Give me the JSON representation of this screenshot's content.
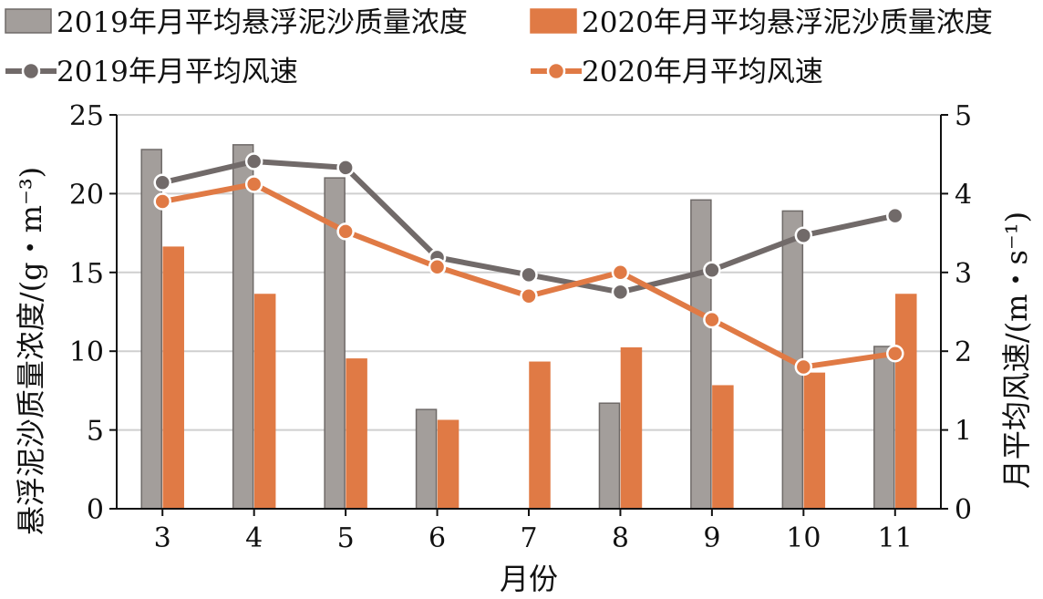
{
  "chart_data": {
    "type": "bar",
    "categories": [
      "3",
      "4",
      "5",
      "6",
      "7",
      "8",
      "9",
      "10",
      "11"
    ],
    "xlabel": "月份",
    "ylabel_left": "悬浮泥沙质量浓度/(g・m⁻³)",
    "ylabel_right": "月平均风速/(m・s⁻¹)",
    "ylim_left": [
      0,
      25
    ],
    "yticks_left": [
      0,
      5,
      10,
      15,
      20,
      25
    ],
    "ylim_right": [
      0,
      5
    ],
    "yticks_right": [
      0,
      1,
      2,
      3,
      4,
      5
    ],
    "grid": "horizontal",
    "legend_position": "top",
    "bar_series": [
      {
        "name": "2019年月平均悬浮泥沙质量浓度",
        "color": "#a39e9b",
        "edge": "#6f6a68",
        "values": [
          22.8,
          23.1,
          21.0,
          6.3,
          null,
          6.7,
          19.6,
          18.9,
          10.3
        ]
      },
      {
        "name": "2020年月平均悬浮泥沙质量浓度",
        "color": "#e07a45",
        "edge": "#e07a45",
        "values": [
          16.6,
          13.6,
          9.5,
          5.6,
          9.3,
          10.2,
          7.8,
          8.6,
          13.6
        ]
      }
    ],
    "line_series": [
      {
        "name": "2019年月平均风速",
        "color": "#716a69",
        "values": [
          4.14,
          4.41,
          4.33,
          3.19,
          2.97,
          2.75,
          3.03,
          3.47,
          3.72
        ]
      },
      {
        "name": "2020年月平均风速",
        "color": "#e07a45",
        "values": [
          3.9,
          4.12,
          3.52,
          3.07,
          2.7,
          3.0,
          2.4,
          1.8,
          1.97
        ]
      }
    ]
  }
}
